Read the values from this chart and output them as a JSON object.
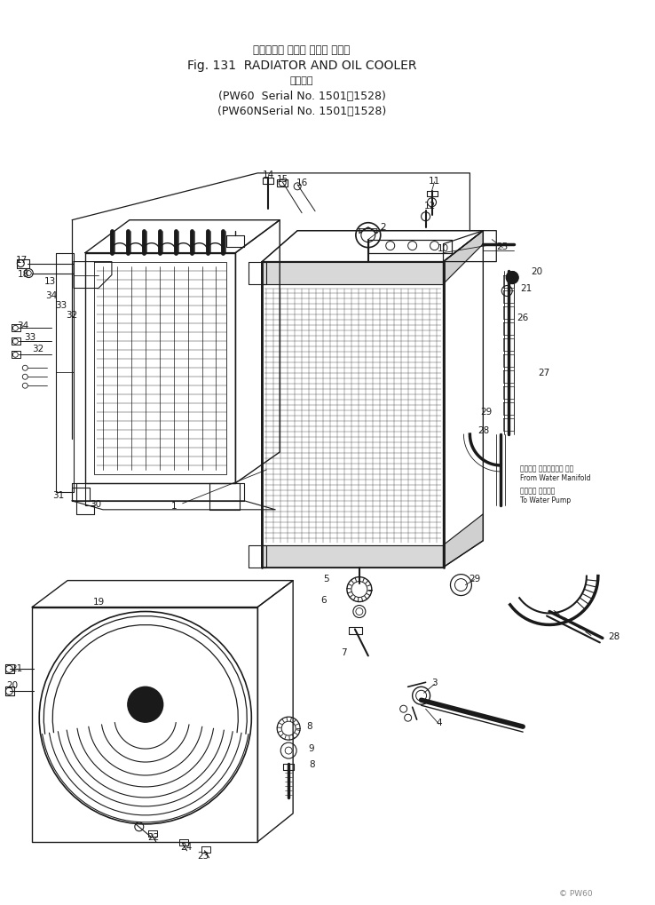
{
  "title_jp": "ラジェータ および オイル クーラ",
  "title_en": "Fig. 131  RADIATOR AND OIL COOLER",
  "subtitle_jp": "適用号機",
  "serial1": "(PW60  Serial No. 1501～1528)",
  "serial2": "(PW60NSerial No. 1501～1528)",
  "watermark": "© PW60",
  "bg_color": "#ffffff",
  "line_color": "#1a1a1a",
  "text_color": "#1a1a1a",
  "fig_width": 7.38,
  "fig_height": 10.2,
  "dpi": 100,
  "label_from_water": "ウォータ マニホールド から\nFrom Water Manifold",
  "label_to_water": "ウォータ ポンプへ\nTo Water Pump"
}
